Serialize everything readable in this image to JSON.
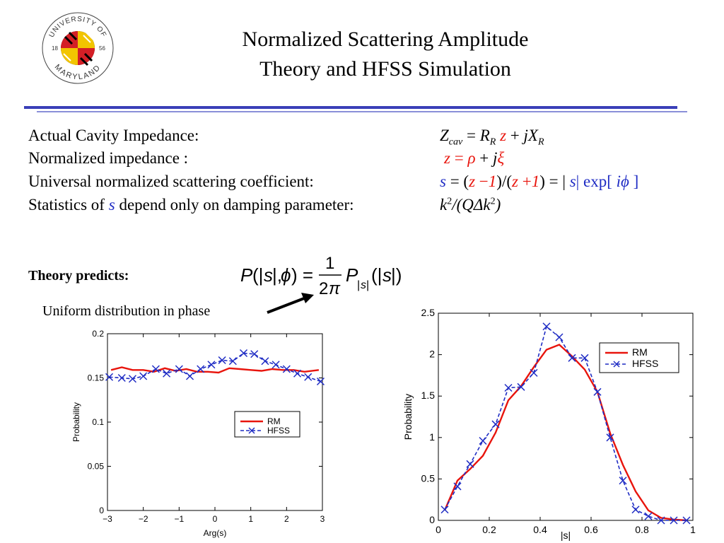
{
  "header": {
    "logo_text_top": "UNIVERSITY OF",
    "logo_text_bottom": "MARYLAND",
    "logo_year_left": "18",
    "logo_year_right": "56",
    "title_line1": "Normalized Scattering Amplitude",
    "title_line2": "Theory and HFSS Simulation"
  },
  "definitions": [
    {
      "label": "Actual Cavity Impedance:"
    },
    {
      "label": "Normalized impedance :"
    },
    {
      "label": "Universal normalized scattering coefficient:"
    },
    {
      "label_pre": "Statistics of ",
      "label_var": "s",
      "label_post": " depend only on damping parameter:"
    }
  ],
  "theory": {
    "label": "Theory predicts:",
    "annotation": "Uniform distribution in phase"
  },
  "colors": {
    "rm": "#e8140c",
    "hfss": "#1f2cc4",
    "accent_rule": "#3a3fb8"
  },
  "chart_data": [
    {
      "type": "line",
      "xlabel": "Arg(s)",
      "ylabel": "Probability",
      "xlim": [
        -3,
        3
      ],
      "ylim": [
        0,
        0.2
      ],
      "xticks": [
        "−3",
        "−2",
        "−1",
        "0",
        "1",
        "2",
        "3"
      ],
      "yticks": [
        "0",
        "0.05",
        "0.1",
        "0.15",
        "0.2"
      ],
      "legend_position": "center-right",
      "series": [
        {
          "name": "RM",
          "style": "solid",
          "x": [
            -2.9,
            -2.6,
            -2.3,
            -2.0,
            -1.7,
            -1.4,
            -1.1,
            -0.8,
            -0.5,
            -0.2,
            0.1,
            0.4,
            0.7,
            1.0,
            1.3,
            1.6,
            1.9,
            2.2,
            2.5,
            2.9
          ],
          "y": [
            0.159,
            0.162,
            0.159,
            0.159,
            0.157,
            0.161,
            0.158,
            0.16,
            0.157,
            0.157,
            0.156,
            0.161,
            0.16,
            0.159,
            0.158,
            0.16,
            0.159,
            0.159,
            0.157,
            0.159
          ]
        },
        {
          "name": "HFSS",
          "style": "dashed-x",
          "x": [
            -2.95,
            -2.6,
            -2.3,
            -2.0,
            -1.65,
            -1.35,
            -1.0,
            -0.7,
            -0.4,
            -0.1,
            0.2,
            0.5,
            0.8,
            1.1,
            1.4,
            1.7,
            2.0,
            2.3,
            2.6,
            2.95
          ],
          "y": [
            0.151,
            0.15,
            0.149,
            0.152,
            0.16,
            0.155,
            0.16,
            0.152,
            0.16,
            0.165,
            0.17,
            0.169,
            0.178,
            0.177,
            0.169,
            0.165,
            0.16,
            0.155,
            0.151,
            0.146
          ]
        }
      ]
    },
    {
      "type": "line",
      "xlabel": "|s|",
      "ylabel": "Probability",
      "xlim": [
        0,
        1
      ],
      "ylim": [
        0,
        2.5
      ],
      "xticks": [
        "0",
        "0.2",
        "0.4",
        "0.6",
        "0.8",
        "1"
      ],
      "yticks": [
        "0",
        "0.5",
        "1",
        "1.5",
        "2",
        "2.5"
      ],
      "legend_position": "top-right",
      "series": [
        {
          "name": "RM",
          "style": "solid",
          "x": [
            0.025,
            0.075,
            0.125,
            0.175,
            0.225,
            0.275,
            0.325,
            0.375,
            0.425,
            0.475,
            0.525,
            0.575,
            0.625,
            0.675,
            0.725,
            0.775,
            0.825,
            0.875,
            0.925,
            0.975
          ],
          "y": [
            0.12,
            0.48,
            0.62,
            0.78,
            1.06,
            1.45,
            1.62,
            1.85,
            2.06,
            2.12,
            1.98,
            1.82,
            1.55,
            1.05,
            0.67,
            0.35,
            0.12,
            0.03,
            0.01,
            0.0
          ]
        },
        {
          "name": "HFSS",
          "style": "dashed-x",
          "x": [
            0.025,
            0.075,
            0.125,
            0.175,
            0.225,
            0.275,
            0.325,
            0.375,
            0.425,
            0.475,
            0.525,
            0.575,
            0.625,
            0.675,
            0.725,
            0.775,
            0.825,
            0.875,
            0.925,
            0.975
          ],
          "y": [
            0.13,
            0.41,
            0.68,
            0.96,
            1.16,
            1.6,
            1.61,
            1.78,
            2.34,
            2.21,
            1.96,
            1.96,
            1.55,
            1.0,
            0.48,
            0.13,
            0.05,
            0.0,
            0.0,
            0.0
          ]
        }
      ]
    }
  ]
}
